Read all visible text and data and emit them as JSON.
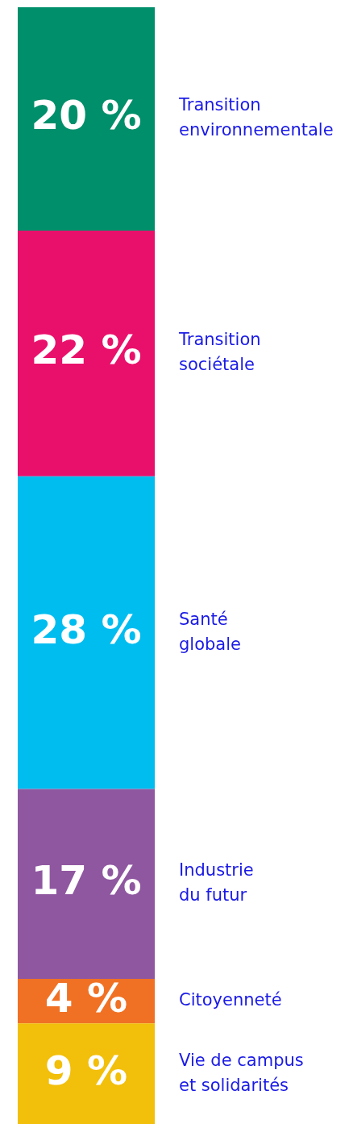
{
  "chart_data": {
    "type": "bar",
    "categories": [
      null
    ],
    "stacked": true,
    "ylim": [
      0,
      100
    ],
    "tick_labels": false,
    "legend": false,
    "grid": false,
    "series": [
      {
        "name": "Vie de campus et solidarités",
        "color": "#f2bf0a",
        "values": [
          9
        ],
        "value_labels": [
          "9 %"
        ]
      },
      {
        "name": "Citoyenneté",
        "color": "#f07124",
        "values": [
          4
        ],
        "value_labels": [
          "4 %"
        ]
      },
      {
        "name": "Industrie du futur",
        "color": "#8f57a0",
        "values": [
          17
        ],
        "value_labels": [
          "17 %"
        ]
      },
      {
        "name": "Santé globale",
        "color": "#00bdf0",
        "values": [
          28
        ],
        "value_labels": [
          "28 %"
        ]
      },
      {
        "name": "Transition sociétale",
        "color": "#e9106b",
        "values": [
          22
        ],
        "value_labels": [
          "22 %"
        ]
      },
      {
        "name": "Transition environnementale",
        "color": "#008f6b",
        "values": [
          20
        ],
        "value_labels": [
          "20 %"
        ]
      }
    ]
  }
}
